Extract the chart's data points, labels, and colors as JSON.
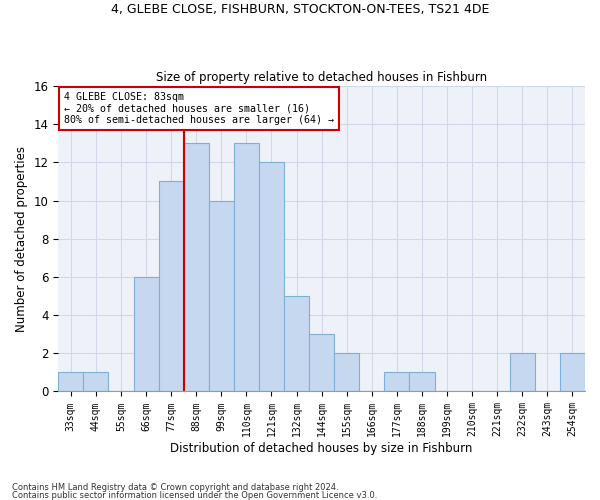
{
  "title1": "4, GLEBE CLOSE, FISHBURN, STOCKTON-ON-TEES, TS21 4DE",
  "title2": "Size of property relative to detached houses in Fishburn",
  "xlabel": "Distribution of detached houses by size in Fishburn",
  "ylabel": "Number of detached properties",
  "categories": [
    "33sqm",
    "44sqm",
    "55sqm",
    "66sqm",
    "77sqm",
    "88sqm",
    "99sqm",
    "110sqm",
    "121sqm",
    "132sqm",
    "144sqm",
    "155sqm",
    "166sqm",
    "177sqm",
    "188sqm",
    "199sqm",
    "210sqm",
    "221sqm",
    "232sqm",
    "243sqm",
    "254sqm"
  ],
  "values": [
    1,
    1,
    0,
    6,
    11,
    13,
    10,
    13,
    12,
    5,
    3,
    2,
    0,
    1,
    1,
    0,
    0,
    0,
    2,
    0,
    2
  ],
  "bar_color": "#c5d8f0",
  "bar_edge_color": "#7eafd4",
  "grid_color": "#d0d8e8",
  "background_color": "#eef2f8",
  "vline_x": 4.5,
  "vline_color": "#cc0000",
  "annotation_line1": "4 GLEBE CLOSE: 83sqm",
  "annotation_line2": "← 20% of detached houses are smaller (16)",
  "annotation_line3": "80% of semi-detached houses are larger (64) →",
  "annotation_box_color": "#cc0000",
  "ylim": [
    0,
    16
  ],
  "yticks": [
    0,
    2,
    4,
    6,
    8,
    10,
    12,
    14,
    16
  ],
  "footer1": "Contains HM Land Registry data © Crown copyright and database right 2024.",
  "footer2": "Contains public sector information licensed under the Open Government Licence v3.0."
}
